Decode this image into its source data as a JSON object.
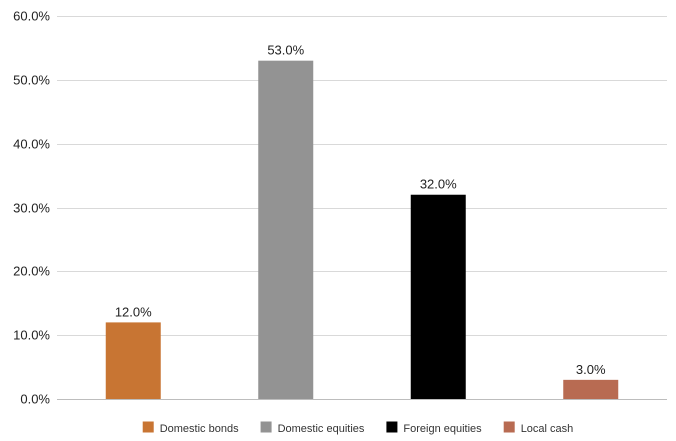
{
  "chart_data": {
    "type": "bar",
    "categories": [
      "Domestic bonds",
      "Domestic equities",
      "Foreign equities",
      "Local cash"
    ],
    "values": [
      12.0,
      53.0,
      32.0,
      3.0
    ],
    "data_labels": [
      "12.0%",
      "53.0%",
      "32.0%",
      "3.0%"
    ],
    "colors": [
      "#c87533",
      "#939393",
      "#000000",
      "#b86b52"
    ],
    "ylim": [
      0,
      60
    ],
    "yticks": [
      0,
      10,
      20,
      30,
      40,
      50,
      60
    ],
    "ytick_labels": [
      "0.0%",
      "10.0%",
      "20.0%",
      "30.0%",
      "40.0%",
      "50.0%",
      "60.0%"
    ],
    "grid": true,
    "legend_position": "bottom",
    "title": "",
    "xlabel": "",
    "ylabel": ""
  }
}
